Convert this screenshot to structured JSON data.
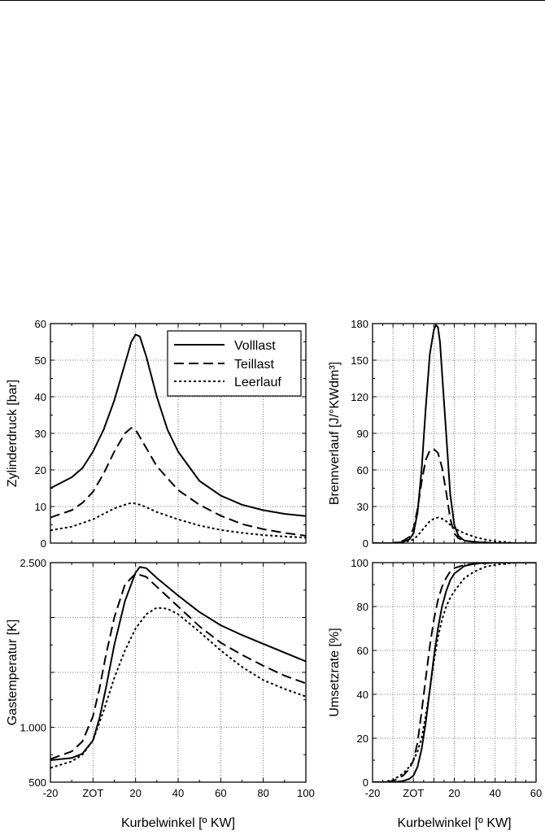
{
  "chart_data": [
    {
      "id": "zylinderdruck",
      "type": "line",
      "ylabel": "Zylinderdruck [bar]",
      "xlabel": "",
      "xlim": [
        -20,
        100
      ],
      "ylim": [
        0,
        60
      ],
      "xticks": [
        -20,
        0,
        20,
        40,
        60,
        80,
        100
      ],
      "xtick_labels": [
        "",
        "",
        "",
        "",
        "",
        "",
        ""
      ],
      "yticks": [
        0,
        10,
        20,
        30,
        40,
        50,
        60
      ],
      "ytick_labels": [
        "0",
        "10",
        "20",
        "30",
        "40",
        "50",
        "60"
      ],
      "grid": true,
      "legend": "top-right",
      "series": [
        {
          "name": "Volllast",
          "dash": "solid",
          "x": [
            -20,
            -10,
            -5,
            0,
            5,
            10,
            15,
            18,
            20,
            22,
            25,
            30,
            35,
            40,
            50,
            60,
            70,
            80,
            90,
            100
          ],
          "y": [
            15,
            18,
            20.5,
            25,
            31,
            39,
            49,
            55,
            57,
            56.5,
            51,
            40,
            31,
            25,
            17,
            13,
            10.5,
            9,
            8,
            7.4
          ]
        },
        {
          "name": "Teillast",
          "dash": "long",
          "x": [
            -20,
            -10,
            -5,
            0,
            5,
            10,
            15,
            18,
            20,
            22,
            25,
            30,
            40,
            50,
            60,
            70,
            80,
            90,
            100
          ],
          "y": [
            7,
            9,
            11,
            14,
            19,
            25,
            30,
            31.5,
            31,
            29,
            26,
            21,
            14.5,
            10.5,
            7.5,
            5.2,
            3.8,
            2.8,
            2
          ]
        },
        {
          "name": "Leerlauf",
          "dash": "short",
          "x": [
            -20,
            -10,
            0,
            5,
            10,
            15,
            18,
            20,
            22,
            25,
            30,
            40,
            50,
            60,
            70,
            80,
            90,
            100
          ],
          "y": [
            3.5,
            4.5,
            6.5,
            8,
            9.5,
            10.5,
            11,
            10.8,
            10.5,
            9.8,
            8.5,
            6.5,
            4.8,
            3.6,
            2.8,
            2.2,
            1.8,
            1.5
          ]
        }
      ]
    },
    {
      "id": "brennverlauf",
      "type": "line",
      "ylabel": "Brennverlauf [J/°KWdm³]",
      "xlabel": "",
      "xlim": [
        -20,
        60
      ],
      "ylim": [
        0,
        180
      ],
      "xticks": [
        -20,
        -10,
        0,
        10,
        20,
        30,
        40,
        50,
        60
      ],
      "xtick_labels": [
        "",
        "",
        "",
        "",
        "",
        "",
        "",
        "",
        ""
      ],
      "yticks": [
        0,
        30,
        60,
        90,
        120,
        150,
        180
      ],
      "ytick_labels": [
        "0",
        "30",
        "60",
        "90",
        "120",
        "150",
        "180"
      ],
      "grid": true,
      "series": [
        {
          "name": "Volllast",
          "dash": "solid",
          "x": [
            -20,
            -10,
            -5,
            -2,
            0,
            2,
            4,
            6,
            8,
            10,
            11,
            12,
            13,
            14,
            16,
            18,
            20,
            22,
            25,
            30,
            40,
            50,
            60
          ],
          "y": [
            0,
            0,
            1,
            3,
            8,
            25,
            60,
            110,
            155,
            175,
            179,
            177,
            165,
            140,
            90,
            40,
            15,
            6,
            2,
            1,
            0,
            0,
            0
          ]
        },
        {
          "name": "Teillast",
          "dash": "long",
          "x": [
            -20,
            -10,
            -5,
            -2,
            0,
            2,
            4,
            6,
            8,
            10,
            12,
            14,
            16,
            18,
            20,
            22,
            25,
            30,
            40,
            50,
            60
          ],
          "y": [
            0,
            0,
            2,
            5,
            12,
            28,
            50,
            68,
            76,
            77,
            74,
            62,
            42,
            20,
            8,
            4,
            2,
            1,
            0,
            0,
            0
          ]
        },
        {
          "name": "Leerlauf",
          "dash": "short",
          "x": [
            -20,
            -10,
            -5,
            0,
            2,
            4,
            6,
            8,
            10,
            12,
            14,
            16,
            18,
            20,
            25,
            30,
            35,
            40,
            50,
            60
          ],
          "y": [
            0,
            0,
            0.5,
            3,
            6,
            10,
            14,
            18,
            20,
            21,
            20,
            18,
            15,
            12,
            8,
            5,
            3,
            1.5,
            0,
            0
          ]
        }
      ]
    },
    {
      "id": "gastemperatur",
      "type": "line",
      "ylabel": "Gastemperatur [K]",
      "xlabel": "Kurbelwinkel [º KW]",
      "xlim": [
        -20,
        100
      ],
      "ylim": [
        500,
        2500
      ],
      "xticks": [
        -20,
        0,
        20,
        40,
        60,
        80,
        100
      ],
      "xtick_labels": [
        "-20",
        "ZOT",
        "20",
        "40",
        "60",
        "80",
        "100"
      ],
      "yticks": [
        500,
        1000,
        1500,
        2000,
        2500
      ],
      "ytick_labels": [
        "500",
        "1.000",
        "",
        "",
        "2.500"
      ],
      "grid": true,
      "series": [
        {
          "name": "Volllast",
          "dash": "solid",
          "x": [
            -20,
            -10,
            -5,
            0,
            3,
            6,
            10,
            15,
            20,
            22,
            25,
            30,
            40,
            50,
            60,
            70,
            80,
            90,
            100
          ],
          "y": [
            700,
            720,
            760,
            880,
            1080,
            1350,
            1750,
            2150,
            2410,
            2460,
            2450,
            2360,
            2200,
            2050,
            1930,
            1840,
            1760,
            1680,
            1600
          ]
        },
        {
          "name": "Teillast",
          "dash": "long",
          "x": [
            -20,
            -10,
            -5,
            0,
            3,
            6,
            10,
            15,
            20,
            25,
            30,
            40,
            50,
            60,
            70,
            80,
            90,
            100
          ],
          "y": [
            710,
            780,
            870,
            1100,
            1350,
            1650,
            2000,
            2300,
            2400,
            2370,
            2280,
            2100,
            1920,
            1770,
            1660,
            1560,
            1470,
            1400
          ]
        },
        {
          "name": "Leerlauf",
          "dash": "short",
          "x": [
            -20,
            -10,
            -5,
            0,
            5,
            10,
            15,
            20,
            25,
            30,
            35,
            40,
            50,
            60,
            70,
            80,
            90,
            100
          ],
          "y": [
            630,
            690,
            750,
            880,
            1150,
            1450,
            1700,
            1900,
            2030,
            2090,
            2080,
            2030,
            1870,
            1700,
            1550,
            1430,
            1350,
            1280
          ]
        }
      ]
    },
    {
      "id": "umsetzrate",
      "type": "line",
      "ylabel": "Umsetzrate [%]",
      "xlabel": "Kurbelwinkel [º KW]",
      "xlim": [
        -20,
        60
      ],
      "ylim": [
        0,
        100
      ],
      "xticks": [
        -20,
        -10,
        0,
        10,
        20,
        30,
        40,
        50,
        60
      ],
      "xtick_labels": [
        "-20",
        "",
        "ZOT",
        "",
        "20",
        "",
        "40",
        "",
        "60"
      ],
      "yticks": [
        0,
        20,
        40,
        60,
        80,
        100
      ],
      "ytick_labels": [
        "0",
        "20",
        "40",
        "60",
        "80",
        "100"
      ],
      "grid": true,
      "series": [
        {
          "name": "Volllast",
          "dash": "solid",
          "x": [
            -20,
            -15,
            -10,
            -5,
            -2,
            0,
            2,
            4,
            6,
            8,
            10,
            12,
            14,
            16,
            18,
            20,
            25,
            30,
            35,
            40,
            50,
            60
          ],
          "y": [
            0,
            0,
            0,
            0.5,
            1.5,
            3,
            7,
            15,
            27,
            42,
            57,
            70,
            80,
            87,
            92,
            95,
            98.5,
            99.5,
            100,
            100,
            100,
            100
          ]
        },
        {
          "name": "Teillast",
          "dash": "long",
          "x": [
            -20,
            -15,
            -10,
            -5,
            -2,
            0,
            2,
            4,
            6,
            8,
            10,
            12,
            14,
            16,
            18,
            20,
            25,
            30,
            40,
            50,
            60
          ],
          "y": [
            0,
            0,
            0.5,
            3,
            6,
            10,
            18,
            32,
            47,
            62,
            74,
            83,
            89,
            93,
            96,
            97.5,
            99,
            99.5,
            100,
            100,
            100
          ]
        },
        {
          "name": "Leerlauf",
          "dash": "short",
          "x": [
            -20,
            -15,
            -10,
            -5,
            -2,
            0,
            2,
            4,
            6,
            8,
            10,
            12,
            14,
            16,
            18,
            20,
            25,
            30,
            35,
            40,
            50,
            60
          ],
          "y": [
            0,
            0,
            1,
            4,
            7,
            10,
            14,
            20,
            30,
            42,
            55,
            66,
            74,
            80,
            84,
            87,
            93,
            96,
            98,
            99,
            100,
            100
          ]
        }
      ]
    }
  ]
}
